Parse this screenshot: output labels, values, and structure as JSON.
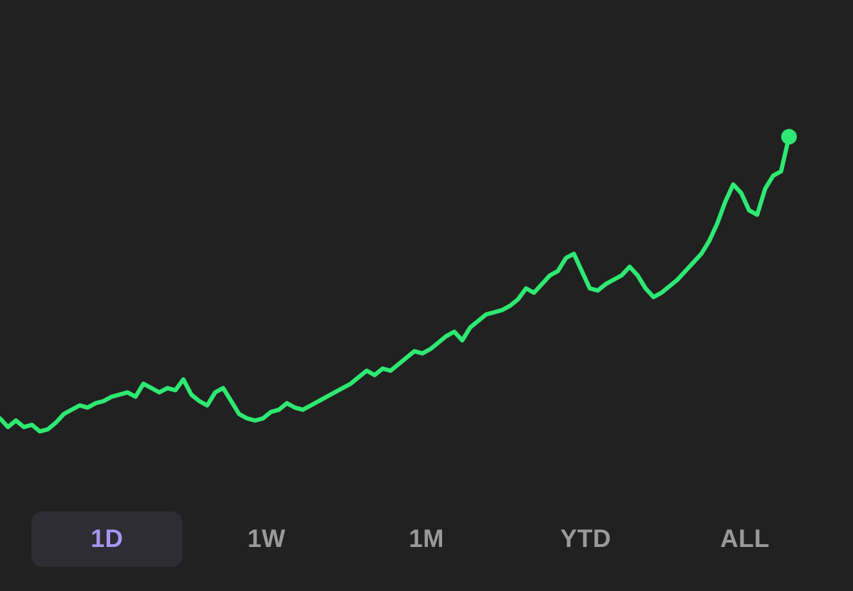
{
  "colors": {
    "background": "#212121",
    "line": "#2ee872",
    "active_tab_text": "#a995f2",
    "inactive_tab_text": "#9a9a9a",
    "active_tab_bg": "#2d2d33"
  },
  "range_tabs": [
    {
      "label": "1D",
      "active": true
    },
    {
      "label": "1W",
      "active": false
    },
    {
      "label": "1M",
      "active": false
    },
    {
      "label": "YTD",
      "active": false
    },
    {
      "label": "ALL",
      "active": false
    }
  ],
  "chart_data": {
    "type": "line",
    "x_count": 100,
    "ylim": [
      0,
      100
    ],
    "grid": false,
    "series": [
      {
        "values": [
          10,
          8,
          9.5,
          8,
          8.5,
          7,
          7.5,
          9,
          11,
          12,
          13,
          12.5,
          13.5,
          14,
          15,
          15.5,
          16,
          15,
          18,
          17,
          16,
          17,
          16.5,
          19,
          15.5,
          14,
          13,
          16,
          17,
          14,
          11,
          10,
          9.5,
          10,
          11.5,
          12,
          13.5,
          12.5,
          12,
          13,
          14,
          15,
          16,
          17,
          18,
          19.5,
          21,
          20,
          21.5,
          21,
          22.5,
          24,
          25.5,
          25,
          26,
          27.5,
          29,
          30,
          28,
          31,
          32.5,
          34,
          34.5,
          35,
          36,
          37.5,
          40,
          39,
          41,
          43,
          44,
          47,
          48,
          44,
          40,
          39.5,
          41,
          42,
          43,
          45,
          43,
          40,
          38,
          39,
          40.5,
          42,
          44,
          46,
          48,
          51,
          55,
          60,
          64,
          62,
          58,
          57,
          63,
          66,
          67,
          75
        ]
      }
    ]
  }
}
